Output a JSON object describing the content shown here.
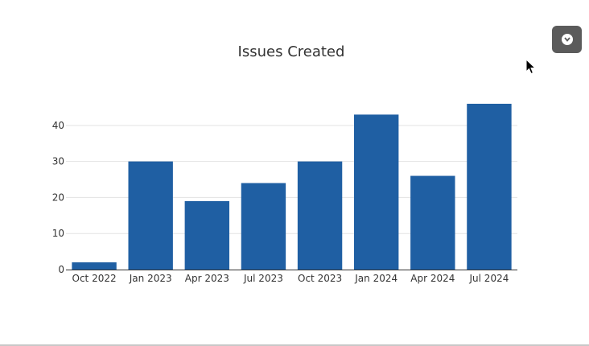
{
  "menu": {
    "icon": "chevron-down-icon"
  },
  "colors": {
    "bar": "#1f5fa3",
    "grid": "#e3e3e3",
    "axis": "#333333",
    "menu_bg": "#5b5b5b"
  },
  "chart_data": {
    "type": "bar",
    "title": "Issues Created",
    "xlabel": "",
    "ylabel": "",
    "categories": [
      "Oct 2022",
      "Jan 2023",
      "Apr 2023",
      "Jul 2023",
      "Oct 2023",
      "Jan 2024",
      "Apr 2024",
      "Jul 2024"
    ],
    "values": [
      2,
      30,
      19,
      24,
      30,
      43,
      26,
      46
    ],
    "ylim": [
      0,
      48
    ],
    "yticks": [
      0,
      10,
      20,
      30,
      40
    ],
    "grid": true,
    "legend": "none"
  }
}
